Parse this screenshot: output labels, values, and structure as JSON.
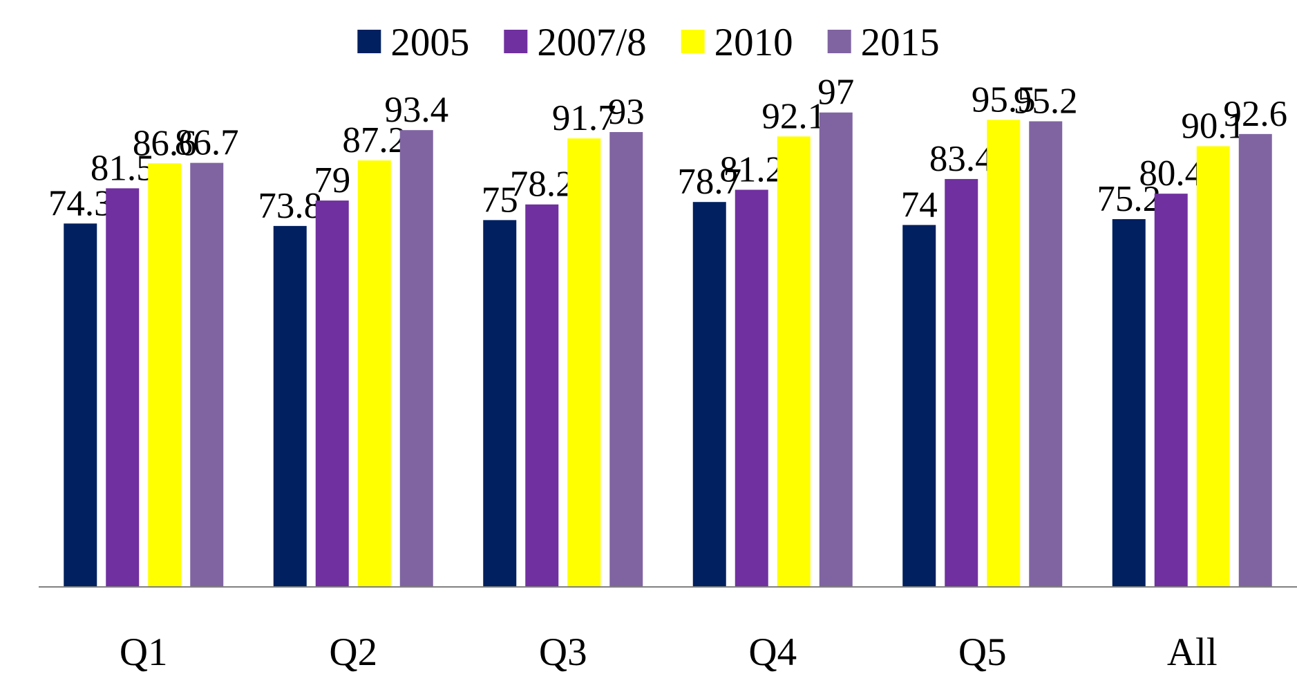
{
  "chart_data": {
    "type": "bar",
    "categories": [
      "Q1",
      "Q2",
      "Q3",
      "Q4",
      "Q5",
      "All"
    ],
    "series": [
      {
        "name": "2005",
        "color": "#002060",
        "values": [
          74.3,
          73.8,
          75,
          78.7,
          74,
          75.2
        ]
      },
      {
        "name": "2007/8",
        "color": "#7030a0",
        "values": [
          81.5,
          79,
          78.2,
          81.2,
          83.4,
          80.4
        ]
      },
      {
        "name": "2010",
        "color": "#ffff00",
        "values": [
          86.6,
          87.2,
          91.7,
          92.1,
          95.5,
          90.1
        ]
      },
      {
        "name": "2015",
        "color": "#8064a2",
        "values": [
          86.7,
          93.4,
          93,
          97,
          95.2,
          92.6
        ]
      }
    ],
    "ylim": [
      0,
      120
    ],
    "legend": "top"
  }
}
